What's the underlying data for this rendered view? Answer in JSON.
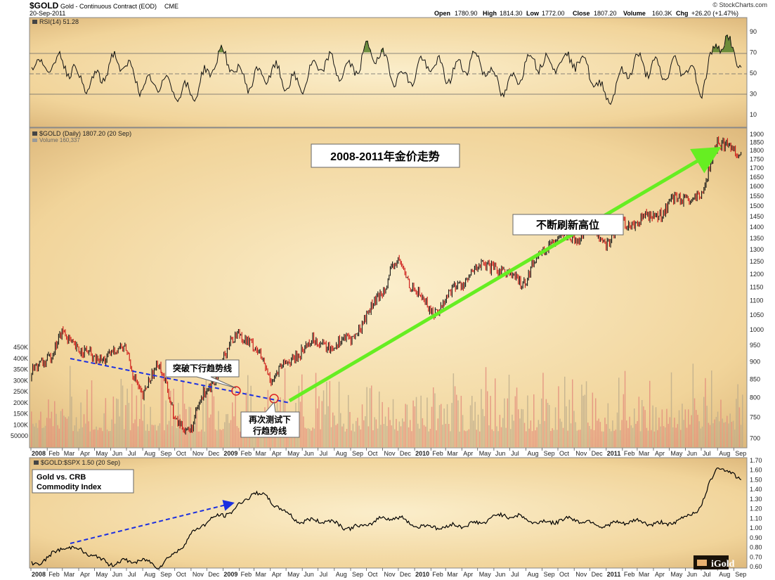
{
  "header": {
    "symbol": "$GOLD",
    "name": "Gold - Continuous Contract (EOD)",
    "exchange": "CME",
    "date": "20-Sep-2011",
    "source": "© StockCharts.com",
    "open_label": "Open",
    "open": "1780.90",
    "high_label": "High",
    "high": "1814.30",
    "low_label": "Low",
    "low": "1772.00",
    "close_label": "Close",
    "close": "1807.20",
    "volume_label": "Volume",
    "volume": "160.3K",
    "chg_label": "Chg",
    "chg": "+26.20 (+1.47%)"
  },
  "rsi_panel": {
    "label": "RSI(14) 51.28",
    "ticks": [
      "90",
      "70",
      "50",
      "30",
      "10"
    ]
  },
  "price_panel": {
    "legend_price": "$GOLD (Daily) 1807.20 (20 Sep)",
    "legend_volume": "Volume 160,337",
    "title": "2008-2011年金价走势",
    "callout_high": "不断刷新高位",
    "callout_break": "突破下行趋势线",
    "callout_retest_1": "再次测试下",
    "callout_retest_2": "行趋势线",
    "price_ticks": [
      "1900",
      "1850",
      "1800",
      "1750",
      "1700",
      "1650",
      "1600",
      "1550",
      "1500",
      "1450",
      "1400",
      "1350",
      "1300",
      "1250",
      "1200",
      "1150",
      "1100",
      "1050",
      "1000",
      "950",
      "900",
      "850",
      "800",
      "750",
      "700"
    ],
    "volume_ticks": [
      "450K",
      "400K",
      "350K",
      "300K",
      "250K",
      "200K",
      "150K",
      "100K",
      "50000"
    ]
  },
  "ratio_panel": {
    "legend": "$GOLD:$SPX 1.50 (20 Sep)",
    "box_line1": "Gold vs. CRB",
    "box_line2": "Commodity Index",
    "ticks": [
      "1.70",
      "1.60",
      "1.50",
      "1.40",
      "1.30",
      "1.20",
      "1.10",
      "1.00",
      "0.90",
      "0.80",
      "0.70",
      "0.60"
    ]
  },
  "x_axis": [
    "2008",
    "Feb",
    "Mar",
    "Apr",
    "May",
    "Jun",
    "Jul",
    "Aug",
    "Sep",
    "Oct",
    "Nov",
    "Dec",
    "2009",
    "Feb",
    "Mar",
    "Apr",
    "May",
    "Jun",
    "Jul",
    "Aug",
    "Sep",
    "Oct",
    "Nov",
    "Dec",
    "2010",
    "Feb",
    "Mar",
    "Apr",
    "May",
    "Jun",
    "Jul",
    "Aug",
    "Sep",
    "Oct",
    "Nov",
    "Dec",
    "2011",
    "Feb",
    "Mar",
    "Apr",
    "May",
    "Jun",
    "Jul",
    "Aug",
    "Sep"
  ],
  "logo": "iGold",
  "colors": {
    "panel_bg": "#f6e0b0",
    "panel_edge": "#c9a668",
    "trend_green": "#66ee22",
    "trend_blue": "#1b2fe0",
    "marker_red": "#dd2222"
  },
  "chart_data": [
    {
      "type": "line",
      "title": "RSI(14) 51.28",
      "y_range": [
        0,
        100
      ],
      "reference_lines": [
        30,
        50,
        70
      ],
      "x": [
        "2008-01",
        "2008-04",
        "2008-07",
        "2008-10",
        "2009-01",
        "2009-04",
        "2009-07",
        "2009-10",
        "2010-01",
        "2010-04",
        "2010-07",
        "2010-10",
        "2011-01",
        "2011-04",
        "2011-07",
        "2011-08",
        "2011-09"
      ],
      "values": [
        68,
        45,
        55,
        28,
        60,
        42,
        50,
        65,
        48,
        60,
        42,
        70,
        35,
        62,
        40,
        88,
        51
      ]
    },
    {
      "type": "line",
      "title": "2008-2011年金价走势",
      "scale": "log",
      "y_range": [
        680,
        1930
      ],
      "x": [
        "2008-01",
        "2008-03",
        "2008-05",
        "2008-07",
        "2008-08",
        "2008-09",
        "2008-10",
        "2008-11",
        "2008-12",
        "2009-02",
        "2009-04",
        "2009-06",
        "2009-08",
        "2009-10",
        "2009-12",
        "2010-02",
        "2010-04",
        "2010-06",
        "2010-08",
        "2010-10",
        "2010-12",
        "2011-01",
        "2011-03",
        "2011-05",
        "2011-07",
        "2011-08",
        "2011-09"
      ],
      "values": [
        850,
        1000,
        880,
        960,
        800,
        900,
        720,
        730,
        840,
        980,
        870,
        940,
        940,
        1050,
        1220,
        1080,
        1150,
        1250,
        1180,
        1350,
        1420,
        1320,
        1430,
        1530,
        1500,
        1880,
        1807
      ]
    },
    {
      "type": "bar",
      "title": "Volume 160,337",
      "y_range": [
        0,
        450000
      ],
      "note": "daily volume bars; last value 160337"
    },
    {
      "type": "line",
      "title": "$GOLD:$SPX 1.50 (20 Sep)",
      "y_range": [
        0.6,
        1.7
      ],
      "x": [
        "2008-01",
        "2008-03",
        "2008-06",
        "2008-09",
        "2008-12",
        "2009-02",
        "2009-03",
        "2009-06",
        "2009-09",
        "2009-12",
        "2010-03",
        "2010-06",
        "2010-09",
        "2010-12",
        "2011-03",
        "2011-06",
        "2011-07",
        "2011-08",
        "2011-09"
      ],
      "values": [
        0.62,
        0.8,
        0.66,
        0.62,
        1.05,
        1.25,
        1.36,
        1.08,
        1.02,
        1.1,
        0.98,
        1.12,
        1.08,
        1.06,
        1.04,
        1.09,
        1.2,
        1.68,
        1.5
      ]
    }
  ]
}
